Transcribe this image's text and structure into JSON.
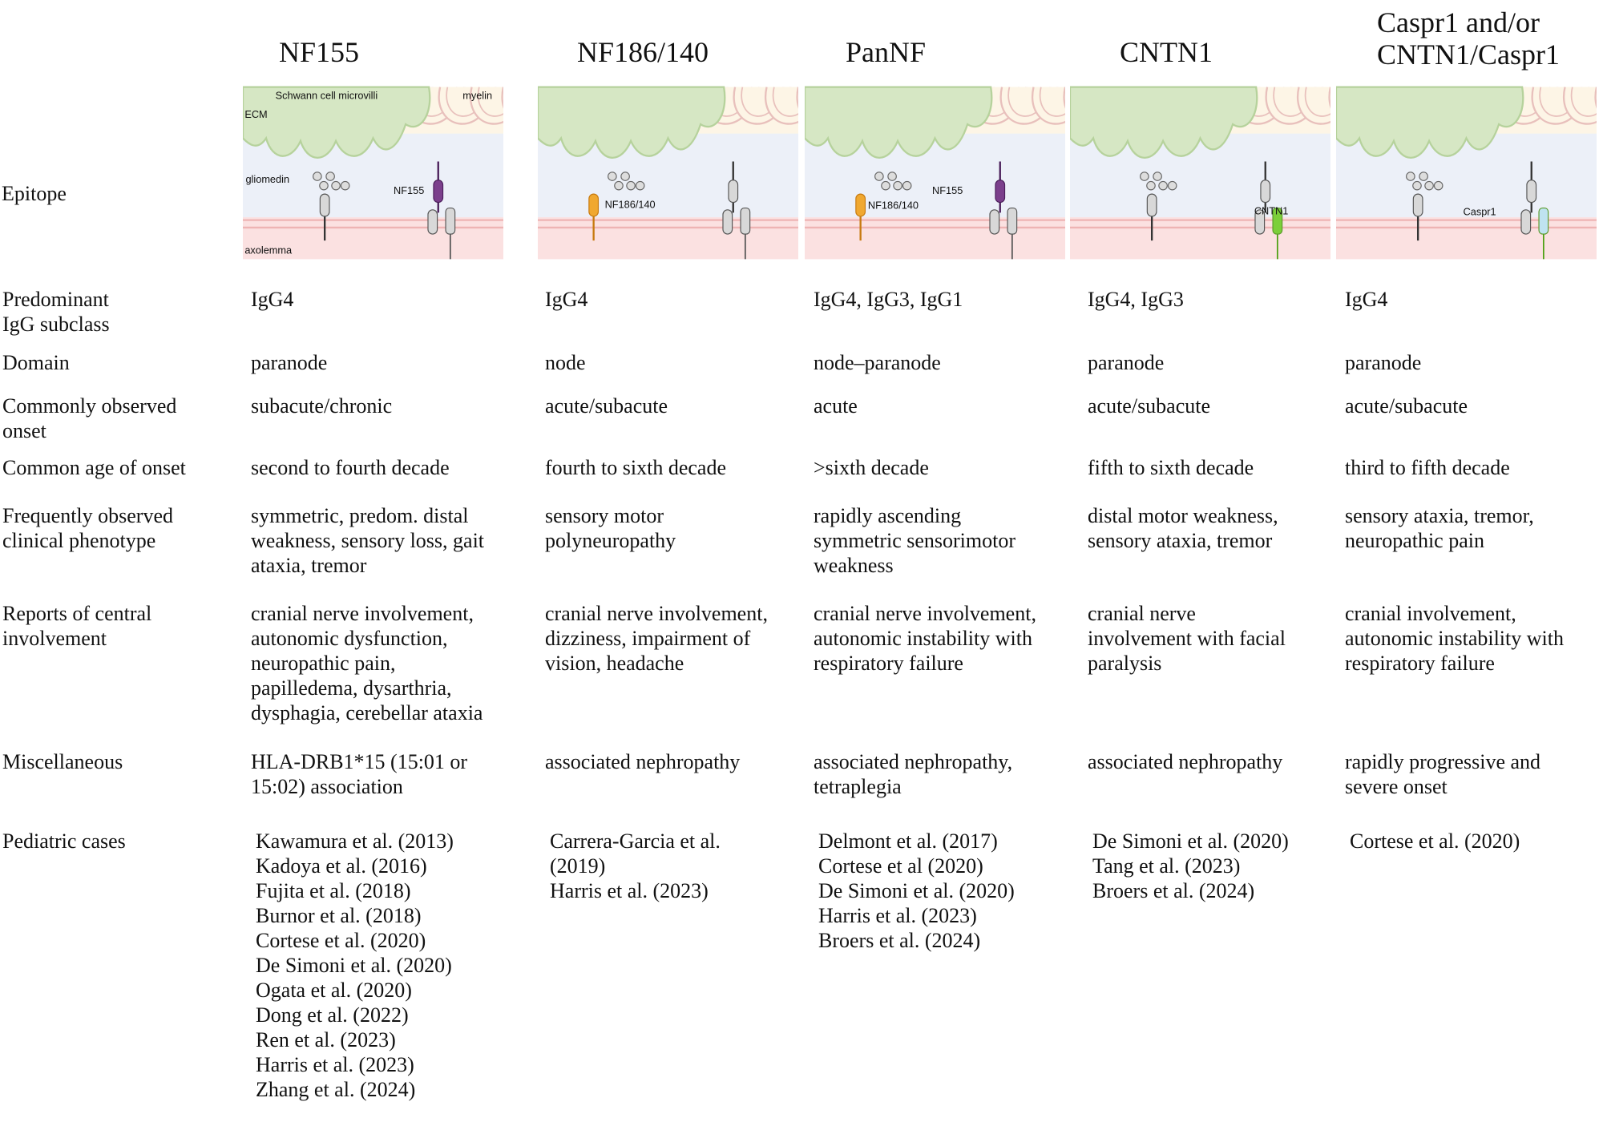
{
  "columns": [
    [
      "NF155"
    ],
    [
      "NF186/140"
    ],
    [
      "PanNF"
    ],
    [
      "CNTN1"
    ],
    [
      "Caspr1 and/or",
      "CNTN1/Caspr1"
    ]
  ],
  "epitope": {
    "label": [
      "Epitope"
    ],
    "panels": [
      {
        "labels": [
          "Schwann cell microvilli",
          "myelin",
          "ECM",
          "gliomedin",
          "NF155",
          "axolemma"
        ]
      },
      {
        "labels": [
          "NF186/140"
        ]
      },
      {
        "labels": [
          "NF155",
          "NF186/140"
        ]
      },
      {
        "labels": [
          "CNTN1"
        ]
      },
      {
        "labels": [
          "Caspr1"
        ]
      }
    ]
  },
  "rows": [
    {
      "label": [
        "Predominant",
        "IgG subclass"
      ],
      "cells": [
        [
          "IgG4"
        ],
        [
          "IgG4"
        ],
        [
          "IgG4, IgG3, IgG1"
        ],
        [
          "IgG4, IgG3"
        ],
        [
          "IgG4"
        ]
      ]
    },
    {
      "label": [
        "Domain"
      ],
      "cells": [
        [
          "paranode"
        ],
        [
          "node"
        ],
        [
          "node–paranode"
        ],
        [
          "paranode"
        ],
        [
          "paranode"
        ]
      ]
    },
    {
      "label": [
        "Commonly observed",
        "onset"
      ],
      "cells": [
        [
          "subacute/chronic"
        ],
        [
          "acute/subacute"
        ],
        [
          "acute"
        ],
        [
          "acute/subacute"
        ],
        [
          "acute/subacute"
        ]
      ]
    },
    {
      "label": [
        "Common age of onset"
      ],
      "cells": [
        [
          "second to fourth decade"
        ],
        [
          "fourth to sixth decade"
        ],
        [
          ">sixth decade"
        ],
        [
          "fifth to sixth decade"
        ],
        [
          "third to fifth decade"
        ]
      ]
    },
    {
      "label": [
        "Frequently observed",
        "clinical phenotype"
      ],
      "cells": [
        [
          "symmetric, predom. distal",
          "weakness, sensory loss, gait",
          "ataxia, tremor"
        ],
        [
          "sensory motor",
          "polyneuropathy"
        ],
        [
          "rapidly ascending",
          "symmetric sensorimotor",
          "weakness"
        ],
        [
          "distal motor weakness,",
          "sensory ataxia, tremor"
        ],
        [
          "sensory ataxia, tremor,",
          "neuropathic pain"
        ]
      ]
    },
    {
      "label": [
        "Reports of central",
        "involvement"
      ],
      "cells": [
        [
          "cranial nerve involvement,",
          "autonomic dysfunction,",
          "neuropathic pain,",
          "papilledema, dysarthria,",
          "dysphagia, cerebellar ataxia"
        ],
        [
          "cranial nerve involvement,",
          "dizziness, impairment of",
          "vision, headache"
        ],
        [
          "cranial nerve involvement,",
          "autonomic instability with",
          "respiratory failure"
        ],
        [
          "cranial nerve",
          "involvement with facial",
          "paralysis"
        ],
        [
          "cranial involvement,",
          "autonomic instability with",
          "respiratory failure"
        ]
      ]
    },
    {
      "label": [
        "Miscellaneous"
      ],
      "cells": [
        [
          "HLA-DRB1*15 (15:01 or",
          "15:02) association"
        ],
        [
          "associated nephropathy"
        ],
        [
          "associated nephropathy,",
          "tetraplegia"
        ],
        [
          "associated nephropathy"
        ],
        [
          "rapidly progressive and",
          "severe onset"
        ]
      ]
    },
    {
      "label": [
        "Pediatric cases"
      ],
      "cells": [
        [
          "Kawamura et al. (2013)",
          "Kadoya et al. (2016)",
          "Fujita et al. (2018)",
          "Burnor et al. (2018)",
          "Cortese et al. (2020)",
          "De Simoni et al. (2020)",
          "Ogata et al. (2020)",
          "Dong et al. (2022)",
          "Ren et al. (2023)",
          "Harris et al. (2023)",
          "Zhang et al. (2024)"
        ],
        [
          "Carrera-Garcia et al.",
          "(2019)",
          "Harris et al. (2023)"
        ],
        [
          "Delmont et al. (2017)",
          "Cortese et al (2020)",
          "De Simoni et al. (2020)",
          "Harris et al. (2023)",
          "Broers et al. (2024)"
        ],
        [
          "De Simoni et al. (2020)",
          "Tang et al. (2023)",
          "Broers et al. (2024)"
        ],
        [
          "Cortese et al. (2020)"
        ]
      ]
    }
  ]
}
